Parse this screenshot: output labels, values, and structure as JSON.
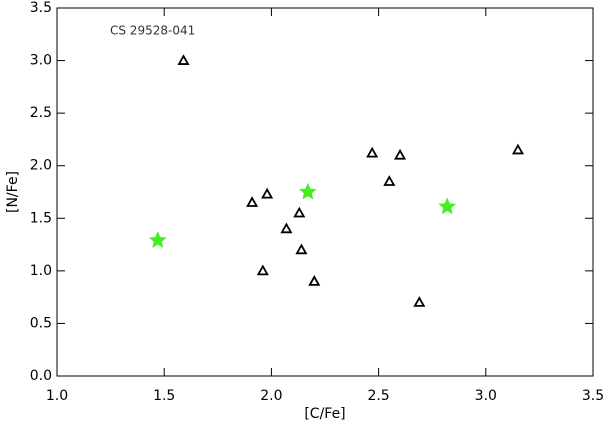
{
  "chart_data": {
    "type": "scatter",
    "xlabel": "[C/Fe]",
    "ylabel": "[N/Fe]",
    "annotation": "CS 29528-041",
    "xlim": [
      1.0,
      3.5
    ],
    "xticks": [
      {
        "value": 1.0,
        "label": "1.0"
      },
      1.5,
      {
        "value": 2.0,
        "label": "2.0"
      },
      2.5,
      {
        "value": 3.0,
        "label": "3.0"
      },
      3.5
    ],
    "ylim": [
      0.0,
      3.5
    ],
    "yticks": [
      {
        "value": 0.0,
        "label": "0.0"
      },
      0.5,
      {
        "value": 1.0,
        "label": "1.0"
      },
      1.5,
      {
        "value": 2.0,
        "label": "2.0"
      },
      2.5,
      {
        "value": 3.0,
        "label": "3.0"
      },
      3.5
    ],
    "series": [
      {
        "marker": "triangle",
        "color": "#000000",
        "x": [
          1.59,
          1.91,
          1.98,
          2.07,
          2.13,
          2.14,
          1.96,
          2.2,
          2.47,
          2.55,
          2.6,
          2.69,
          3.15
        ],
        "y": [
          3.0,
          1.65,
          1.73,
          1.4,
          1.55,
          1.2,
          1.0,
          0.9,
          2.12,
          1.85,
          2.1,
          0.7,
          2.15
        ]
      },
      {
        "marker": "star",
        "color": "#44ee22",
        "x": [
          1.47,
          2.17,
          2.82
        ],
        "y": [
          1.29,
          1.75,
          1.61
        ]
      }
    ]
  }
}
